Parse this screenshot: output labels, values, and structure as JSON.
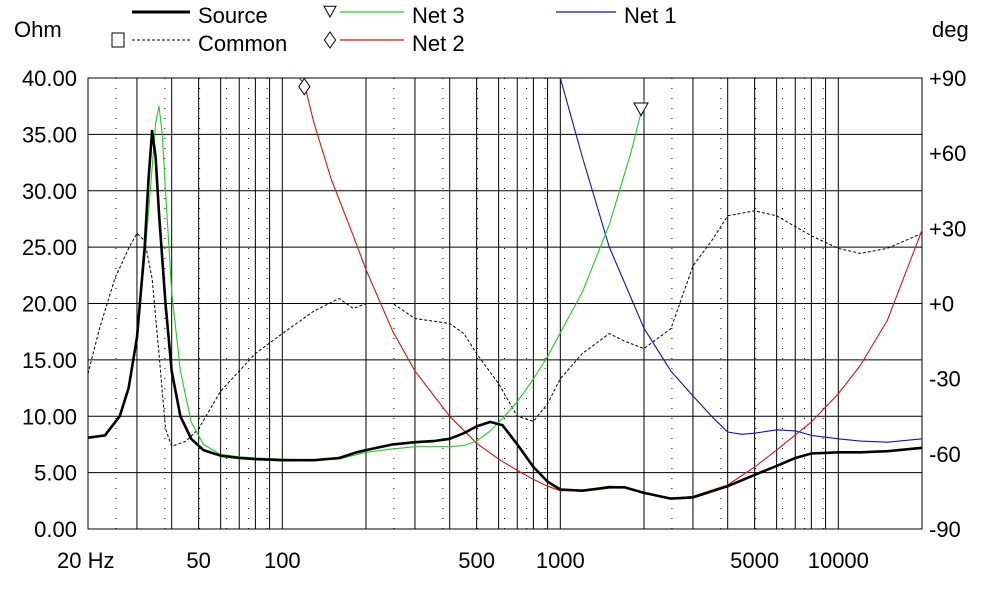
{
  "chart_data": {
    "type": "line",
    "left_unit": "Ohm",
    "right_unit": "deg",
    "x_scale": "log",
    "xlim": [
      20,
      20000
    ],
    "ylim": [
      0,
      40
    ],
    "y2lim": [
      -90,
      90
    ],
    "grid": true,
    "legend_placement": "top",
    "x_tick_labels": [
      {
        "value": 20,
        "label": "20 Hz"
      },
      {
        "value": 50,
        "label": "50"
      },
      {
        "value": 100,
        "label": "100"
      },
      {
        "value": 500,
        "label": "500"
      },
      {
        "value": 1000,
        "label": "1000"
      },
      {
        "value": 5000,
        "label": "5000"
      },
      {
        "value": 10000,
        "label": "10000"
      }
    ],
    "y_tick_labels": [
      "0.00",
      "5.00",
      "10.00",
      "15.00",
      "20.00",
      "25.00",
      "30.00",
      "35.00",
      "40.00"
    ],
    "y2_tick_labels": [
      "-90",
      "-60",
      "-30",
      "+0",
      "+30",
      "+60",
      "+90"
    ],
    "legend": [
      {
        "name": "Source",
        "color": "#000000",
        "style": "solid-thick",
        "marker": ""
      },
      {
        "name": "Common",
        "color": "#000000",
        "style": "dotted",
        "marker": "square"
      },
      {
        "name": "Net 3",
        "color": "#22cc22",
        "style": "solid",
        "marker": "triangle"
      },
      {
        "name": "Net 2",
        "color": "#dd1111",
        "style": "solid",
        "marker": "diamond"
      },
      {
        "name": "Net 1",
        "color": "#1111bb",
        "style": "solid",
        "marker": ""
      }
    ],
    "series": [
      {
        "name": "Source",
        "axis": "left",
        "points": [
          [
            20,
            8.1
          ],
          [
            23,
            8.3
          ],
          [
            26,
            10
          ],
          [
            28,
            12.5
          ],
          [
            30,
            17
          ],
          [
            32,
            25
          ],
          [
            33,
            31
          ],
          [
            34,
            35.3
          ],
          [
            35,
            33
          ],
          [
            36,
            28
          ],
          [
            38,
            20
          ],
          [
            40,
            14
          ],
          [
            43,
            10
          ],
          [
            47,
            8
          ],
          [
            52,
            7
          ],
          [
            60,
            6.5
          ],
          [
            70,
            6.3
          ],
          [
            80,
            6.2
          ],
          [
            100,
            6.1
          ],
          [
            130,
            6.1
          ],
          [
            160,
            6.3
          ],
          [
            185,
            6.8
          ],
          [
            200,
            7
          ],
          [
            250,
            7.5
          ],
          [
            300,
            7.7
          ],
          [
            350,
            7.8
          ],
          [
            400,
            8
          ],
          [
            450,
            8.5
          ],
          [
            500,
            9.1
          ],
          [
            560,
            9.5
          ],
          [
            620,
            9.2
          ],
          [
            700,
            7.5
          ],
          [
            800,
            5.5
          ],
          [
            900,
            4.2
          ],
          [
            1000,
            3.5
          ],
          [
            1200,
            3.4
          ],
          [
            1500,
            3.7
          ],
          [
            1700,
            3.7
          ],
          [
            2000,
            3.2
          ],
          [
            2500,
            2.7
          ],
          [
            3000,
            2.8
          ],
          [
            4000,
            3.8
          ],
          [
            5000,
            4.8
          ],
          [
            6000,
            5.6
          ],
          [
            7000,
            6.3
          ],
          [
            8000,
            6.7
          ],
          [
            10000,
            6.8
          ],
          [
            12000,
            6.8
          ],
          [
            15000,
            6.9
          ],
          [
            20000,
            7.2
          ]
        ]
      },
      {
        "name": "Common",
        "axis": "right",
        "points": [
          [
            20,
            -28
          ],
          [
            22,
            -10
          ],
          [
            25,
            10
          ],
          [
            28,
            22
          ],
          [
            30,
            28
          ],
          [
            32,
            25
          ],
          [
            34,
            10
          ],
          [
            36,
            -20
          ],
          [
            38,
            -50
          ],
          [
            40,
            -57
          ],
          [
            45,
            -55
          ],
          [
            50,
            -50
          ],
          [
            60,
            -35
          ],
          [
            80,
            -20
          ],
          [
            100,
            -12
          ],
          [
            130,
            -3
          ],
          [
            160,
            2
          ],
          [
            180,
            -2
          ],
          [
            200,
            0
          ],
          [
            250,
            0
          ],
          [
            300,
            -6
          ],
          [
            400,
            -8
          ],
          [
            450,
            -12
          ],
          [
            500,
            -20
          ],
          [
            600,
            -32
          ],
          [
            700,
            -45
          ],
          [
            800,
            -47
          ],
          [
            900,
            -40
          ],
          [
            1000,
            -30
          ],
          [
            1200,
            -20
          ],
          [
            1500,
            -12
          ],
          [
            1700,
            -15
          ],
          [
            2000,
            -18
          ],
          [
            2500,
            -10
          ],
          [
            3000,
            15
          ],
          [
            3500,
            25
          ],
          [
            4000,
            35
          ],
          [
            5000,
            37
          ],
          [
            6000,
            35
          ],
          [
            8000,
            27
          ],
          [
            10000,
            22
          ],
          [
            12000,
            20
          ],
          [
            15000,
            22
          ],
          [
            20000,
            28
          ]
        ]
      },
      {
        "name": "Net 3",
        "axis": "left",
        "points": [
          [
            20,
            8.1
          ],
          [
            23,
            8.3
          ],
          [
            26,
            10
          ],
          [
            28,
            12.5
          ],
          [
            30,
            17
          ],
          [
            32,
            24
          ],
          [
            34,
            32
          ],
          [
            35,
            36
          ],
          [
            36,
            37.5
          ],
          [
            37,
            35
          ],
          [
            38,
            30
          ],
          [
            40,
            21
          ],
          [
            43,
            14
          ],
          [
            47,
            9.5
          ],
          [
            52,
            7.5
          ],
          [
            60,
            6.6
          ],
          [
            70,
            6.4
          ],
          [
            80,
            6.3
          ],
          [
            100,
            6.2
          ],
          [
            130,
            6.1
          ],
          [
            160,
            6.2
          ],
          [
            185,
            6.6
          ],
          [
            200,
            6.8
          ],
          [
            250,
            7.1
          ],
          [
            300,
            7.3
          ],
          [
            400,
            7.3
          ],
          [
            450,
            7.4
          ],
          [
            500,
            7.8
          ],
          [
            560,
            8.7
          ],
          [
            620,
            9.8
          ],
          [
            700,
            11.3
          ],
          [
            800,
            13.3
          ],
          [
            900,
            15.3
          ],
          [
            1000,
            17.4
          ],
          [
            1200,
            21
          ],
          [
            1500,
            27
          ],
          [
            1800,
            33.5
          ],
          [
            2000,
            38
          ]
        ]
      },
      {
        "name": "Net 2",
        "axis": "left",
        "points": [
          [
            115,
            40
          ],
          [
            120,
            39.5
          ],
          [
            130,
            36
          ],
          [
            150,
            31
          ],
          [
            180,
            26
          ],
          [
            200,
            23
          ],
          [
            250,
            17.5
          ],
          [
            300,
            14
          ],
          [
            400,
            10
          ],
          [
            500,
            7.6
          ],
          [
            600,
            6.2
          ],
          [
            700,
            5.2
          ],
          [
            800,
            4.4
          ],
          [
            900,
            3.8
          ],
          [
            1000,
            3.4
          ],
          [
            1200,
            3.4
          ],
          [
            1500,
            3.8
          ],
          [
            1700,
            3.7
          ],
          [
            2000,
            3.2
          ],
          [
            2500,
            2.7
          ],
          [
            3000,
            2.9
          ],
          [
            4000,
            3.9
          ],
          [
            5000,
            5.5
          ],
          [
            6000,
            7
          ],
          [
            8000,
            9.5
          ],
          [
            10000,
            12
          ],
          [
            12000,
            14.5
          ],
          [
            15000,
            18.5
          ],
          [
            20000,
            26.5
          ]
        ]
      },
      {
        "name": "Net 1",
        "axis": "left",
        "points": [
          [
            1000,
            40
          ],
          [
            1200,
            33
          ],
          [
            1500,
            25
          ],
          [
            2000,
            17.8
          ],
          [
            2500,
            14
          ],
          [
            3000,
            11.8
          ],
          [
            3500,
            10
          ],
          [
            4000,
            8.6
          ],
          [
            4500,
            8.4
          ],
          [
            5000,
            8.5
          ],
          [
            6000,
            8.8
          ],
          [
            7000,
            8.7
          ],
          [
            8000,
            8.3
          ],
          [
            10000,
            8
          ],
          [
            12000,
            7.8
          ],
          [
            15000,
            7.7
          ],
          [
            20000,
            8
          ]
        ]
      }
    ]
  }
}
